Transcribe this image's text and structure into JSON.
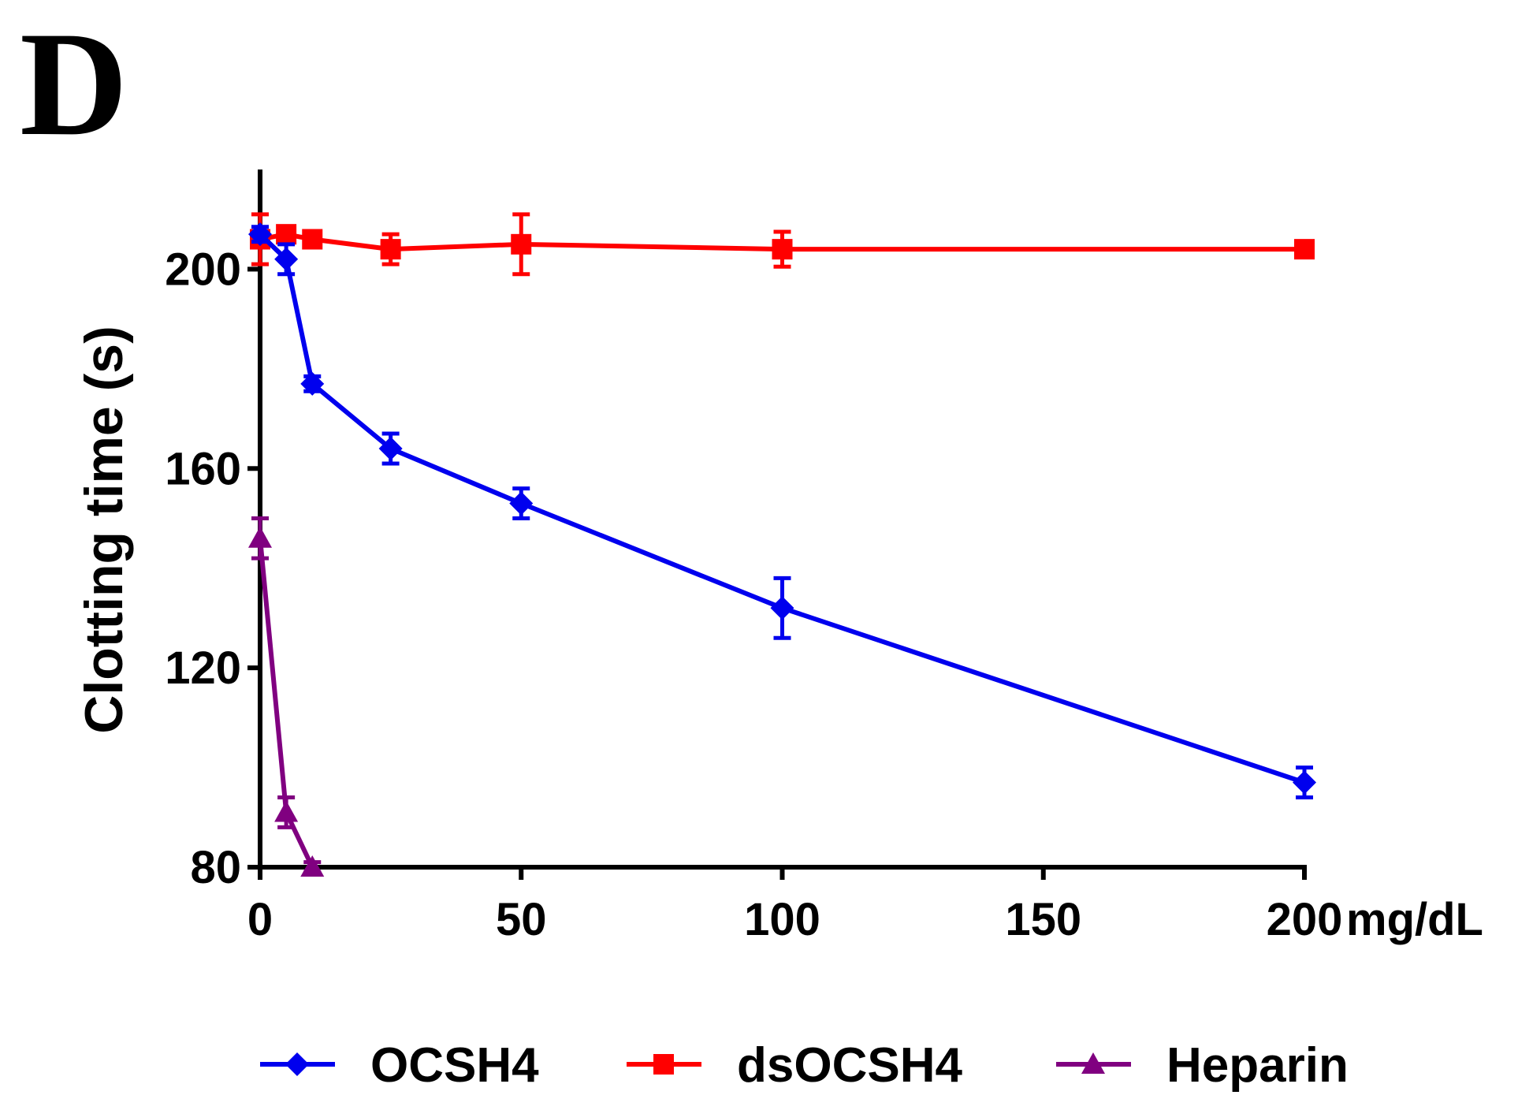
{
  "panel_label": "D",
  "chart_data": {
    "type": "line",
    "title": "",
    "xlabel": "",
    "x_unit": "mg/dL",
    "ylabel": "Clotting time (s)",
    "xlim": [
      0,
      200
    ],
    "ylim": [
      80,
      220
    ],
    "xticks": [
      0,
      50,
      100,
      150,
      200
    ],
    "yticks": [
      80,
      120,
      160,
      200
    ],
    "legend_position": "bottom",
    "series": [
      {
        "name": "OCSH4",
        "color": "#0000ee",
        "marker": "diamond",
        "points": [
          {
            "x": 0,
            "y": 207,
            "err": 1.5
          },
          {
            "x": 5,
            "y": 202,
            "err": 3
          },
          {
            "x": 10,
            "y": 177,
            "err": 1.5
          },
          {
            "x": 25,
            "y": 164,
            "err": 3
          },
          {
            "x": 50,
            "y": 153,
            "err": 3
          },
          {
            "x": 100,
            "y": 132,
            "err": 6
          },
          {
            "x": 200,
            "y": 97,
            "err": 3
          }
        ]
      },
      {
        "name": "dsOCSH4",
        "color": "#ff0000",
        "marker": "square",
        "points": [
          {
            "x": 0,
            "y": 206,
            "err": 5
          },
          {
            "x": 5,
            "y": 207,
            "err": 1.5
          },
          {
            "x": 10,
            "y": 206,
            "err": 1.5
          },
          {
            "x": 25,
            "y": 204,
            "err": 3
          },
          {
            "x": 50,
            "y": 205,
            "err": 6
          },
          {
            "x": 100,
            "y": 204,
            "err": 3.5
          },
          {
            "x": 200,
            "y": 204,
            "err": 1.5
          }
        ]
      },
      {
        "name": "Heparin",
        "color": "#800080",
        "marker": "triangle",
        "points": [
          {
            "x": 0,
            "y": 146,
            "err": 4
          },
          {
            "x": 5,
            "y": 91,
            "err": 3
          },
          {
            "x": 10,
            "y": 80,
            "err": 1
          }
        ]
      }
    ]
  }
}
